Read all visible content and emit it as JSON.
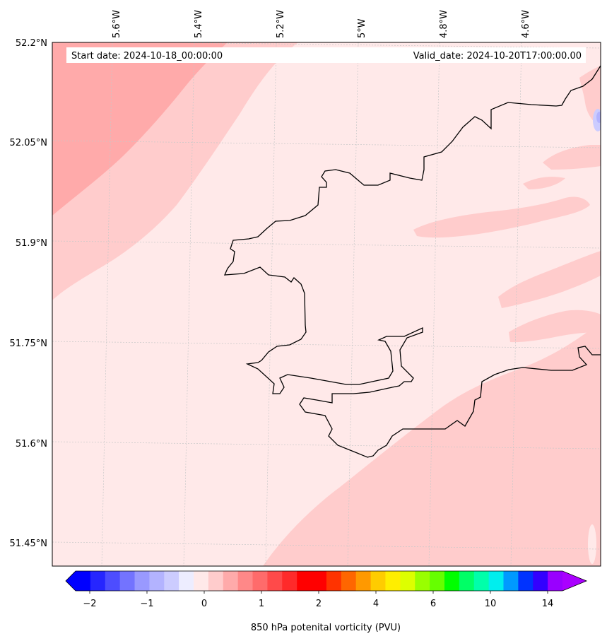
{
  "map": {
    "start_date": "Start date: 2024-10-18_00:00:00",
    "valid_date": "Valid_date: 2024-10-20T17:00:00.00",
    "lon_labels": [
      "5.6°W",
      "5.4°W",
      "5.2°W",
      "5°W",
      "4.8°W",
      "4.6°W"
    ],
    "lat_labels": [
      "52.2°N",
      "52.05°N",
      "51.9°N",
      "51.75°N",
      "51.6°N",
      "51.45°N"
    ]
  },
  "colorbar": {
    "label": "850 hPa potenital vorticity (PVU)",
    "tick_labels": [
      "−2",
      "−1",
      "0",
      "1",
      "2",
      "4",
      "6",
      "10",
      "14"
    ],
    "colors": [
      "#0000ff",
      "#2626ff",
      "#4d4dff",
      "#7373ff",
      "#9999ff",
      "#b3b3ff",
      "#ccccff",
      "#ededff",
      "#ffe9e9",
      "#ffcccc",
      "#ffaaaa",
      "#ff8888",
      "#ff6b6b",
      "#ff4a4a",
      "#ff2a2a",
      "#ff0000",
      "#ff0000",
      "#ff3300",
      "#ff6600",
      "#ff9900",
      "#ffcc00",
      "#ffee00",
      "#ddff00",
      "#99ff00",
      "#66ff00",
      "#00ff00",
      "#00ff66",
      "#00ffaa",
      "#00eeee",
      "#0099ff",
      "#0033ff",
      "#3300ff",
      "#9900ff"
    ],
    "under_color": "#0000ff",
    "over_color": "#aa00ff"
  },
  "field_colors": {
    "background": "#ffe9e9",
    "band_light": "#ffcccc",
    "band_medium": "#ffaaaa",
    "negative_light": "#ccccff",
    "negative_mid": "#b3b3ff",
    "coastline": "#000000"
  }
}
